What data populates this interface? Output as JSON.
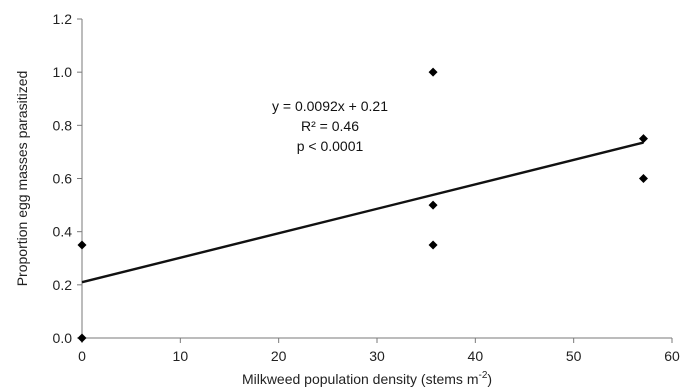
{
  "chart_data": {
    "type": "scatter",
    "title": "",
    "xlabel": "Milkweed population density (stems m",
    "xlabel_sup": "-2",
    "xlabel_suffix": ")",
    "ylabel": "Proportion egg masses parasitized",
    "xlim": [
      0,
      60
    ],
    "ylim": [
      0,
      1.2
    ],
    "x_ticks": [
      "0",
      "10",
      "20",
      "30",
      "40",
      "50",
      "60"
    ],
    "y_ticks": [
      "0.0",
      "0.2",
      "0.4",
      "0.6",
      "0.8",
      "1.0",
      "1.2"
    ],
    "grid": false,
    "series": [
      {
        "points": [
          {
            "x": 0,
            "y": 0.35
          },
          {
            "x": 0,
            "y": 0.0
          },
          {
            "x": 35.7,
            "y": 1.0
          },
          {
            "x": 35.7,
            "y": 0.5
          },
          {
            "x": 35.7,
            "y": 0.35
          },
          {
            "x": 57.1,
            "y": 0.75
          },
          {
            "x": 57.1,
            "y": 0.6
          }
        ]
      }
    ],
    "trendline": {
      "slope": 0.0092,
      "intercept": 0.21,
      "x_range": [
        0,
        57.1
      ]
    },
    "annotations": [
      "y = 0.0092x + 0.21",
      "R² = 0.46",
      "p < 0.0001"
    ]
  }
}
